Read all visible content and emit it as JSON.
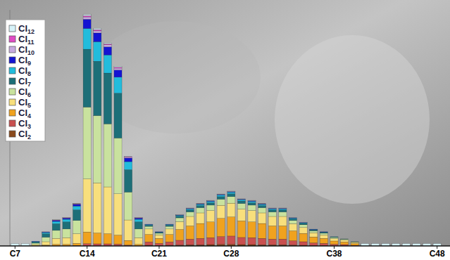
{
  "chart_data": {
    "type": "bar",
    "stacked": true,
    "legend": "top-left",
    "tick_labels": "x",
    "grid": false,
    "ylim": [
      0,
      100
    ],
    "categories": [
      "C7",
      null,
      null,
      null,
      null,
      null,
      null,
      "C14",
      null,
      null,
      null,
      null,
      null,
      null,
      "C21",
      null,
      null,
      null,
      null,
      null,
      null,
      "C28",
      null,
      null,
      null,
      null,
      null,
      null,
      null,
      null,
      null,
      "C38",
      null,
      null,
      null,
      null,
      null,
      null,
      null,
      null,
      null,
      "C48"
    ],
    "series": [
      {
        "name": "Cl2",
        "color": "#8b4a1c",
        "values": [
          0,
          0,
          0,
          0,
          0,
          0,
          0,
          0,
          0,
          0,
          0,
          0,
          0,
          0.3,
          0.2,
          0.3,
          0.4,
          0.5,
          0.5,
          0.6,
          0.7,
          0.7,
          0.6,
          0.6,
          0.5,
          0.5,
          0.5,
          0.4,
          0.3,
          0.2,
          0.2,
          0.1,
          0.1,
          0,
          0,
          0,
          0,
          0,
          0,
          0,
          0,
          0
        ]
      },
      {
        "name": "Cl3",
        "color": "#c9504f",
        "values": [
          0,
          0,
          0,
          0.1,
          0.1,
          0.1,
          0.2,
          1.0,
          0.9,
          0.9,
          0.8,
          0.4,
          0.1,
          1.4,
          0.9,
          1.4,
          2.0,
          2.4,
          2.7,
          2.9,
          3.3,
          3.5,
          3.0,
          2.9,
          2.7,
          2.4,
          2.4,
          1.8,
          1.5,
          1.1,
          0.9,
          0.6,
          0.5,
          0.3,
          0,
          0,
          0,
          0,
          0,
          0,
          0,
          0
        ]
      },
      {
        "name": "Cl4",
        "color": "#f0a21e",
        "values": [
          0,
          0,
          0.1,
          0.3,
          0.6,
          0.6,
          0.9,
          4.9,
          4.6,
          4.3,
          3.8,
          1.9,
          0.6,
          3.2,
          2.1,
          3.2,
          4.6,
          5.6,
          6.3,
          6.7,
          7.7,
          8.1,
          7.0,
          6.7,
          6.3,
          5.6,
          5.6,
          4.2,
          3.5,
          2.5,
          2.1,
          1.4,
          1.1,
          0.7,
          0,
          0,
          0,
          0,
          0,
          0,
          0,
          0
        ]
      },
      {
        "name": "Cl5",
        "color": "#f8df7c",
        "values": [
          0,
          0,
          0.5,
          1.4,
          2.5,
          2.8,
          4.1,
          22.5,
          21.2,
          19.8,
          17.5,
          8.7,
          2.8,
          2.3,
          1.5,
          2.3,
          3.3,
          4.0,
          4.5,
          4.8,
          5.5,
          5.8,
          5.0,
          4.8,
          4.5,
          4.0,
          4.0,
          3.0,
          2.5,
          1.8,
          1.5,
          1.0,
          0.8,
          0.5,
          0,
          0,
          0,
          0,
          0,
          0,
          0,
          0
        ]
      },
      {
        "name": "Cl6",
        "color": "#c9e29e",
        "values": [
          0,
          0,
          0.6,
          1.9,
          3.4,
          3.7,
          5.6,
          30.4,
          28.5,
          26.7,
          23.6,
          11.8,
          3.7,
          1.1,
          0.7,
          1.1,
          1.6,
          1.9,
          2.2,
          2.3,
          2.6,
          2.8,
          2.4,
          2.3,
          2.2,
          1.9,
          1.9,
          1.4,
          1.2,
          0.8,
          0.7,
          0.5,
          0.4,
          0.2,
          0,
          0,
          0,
          0,
          0,
          0,
          0,
          0
        ]
      },
      {
        "name": "Cl7",
        "color": "#1d6f78",
        "values": [
          0,
          0,
          0.5,
          1.5,
          2.8,
          3.0,
          4.5,
          24.5,
          23.0,
          21.5,
          19.0,
          9.5,
          3.0,
          0.5,
          0.3,
          0.5,
          0.7,
          0.8,
          0.9,
          1.0,
          1.1,
          1.2,
          1.0,
          1.0,
          0.9,
          0.8,
          0.8,
          0.6,
          0.5,
          0.4,
          0.3,
          0.2,
          0.1,
          0.1,
          0,
          0,
          0,
          0,
          0,
          0,
          0,
          0
        ]
      },
      {
        "name": "Cl8",
        "color": "#22bcdc",
        "values": [
          0,
          0,
          0.2,
          0.5,
          1.0,
          1.1,
          1.6,
          8.8,
          8.3,
          7.7,
          6.8,
          3.4,
          1.1,
          0.3,
          0.2,
          0.3,
          0.4,
          0.5,
          0.5,
          0.6,
          0.7,
          0.7,
          0.6,
          0.6,
          0.5,
          0.5,
          0.5,
          0.4,
          0.3,
          0.2,
          0.2,
          0.1,
          0,
          0,
          0,
          0,
          0,
          0,
          0,
          0,
          0,
          0
        ]
      },
      {
        "name": "Cl9",
        "color": "#1414d2",
        "values": [
          0,
          0,
          0.1,
          0.2,
          0.4,
          0.5,
          0.7,
          3.9,
          3.7,
          3.4,
          3.0,
          1.5,
          0.5,
          0.1,
          0.1,
          0.1,
          0.1,
          0.2,
          0.2,
          0.2,
          0.2,
          0.2,
          0.2,
          0.2,
          0.2,
          0.2,
          0.2,
          0.1,
          0.1,
          0.1,
          0.1,
          0,
          0,
          0,
          0,
          0,
          0,
          0,
          0,
          0,
          0,
          0
        ]
      },
      {
        "name": "Cl10",
        "color": "#c7a9df",
        "values": [
          0,
          0,
          0,
          0.1,
          0.1,
          0.1,
          0.2,
          1.0,
          0.9,
          0.9,
          0.8,
          0.4,
          0.1,
          0,
          0,
          0,
          0.1,
          0.1,
          0.1,
          0.1,
          0.1,
          0.1,
          0.1,
          0.1,
          0.1,
          0.1,
          0.1,
          0.1,
          0.1,
          0,
          0,
          0,
          0,
          0,
          0,
          0,
          0,
          0,
          0,
          0,
          0,
          0
        ]
      },
      {
        "name": "Cl11",
        "color": "#e04cc4",
        "values": [
          0,
          0,
          0,
          0,
          0.1,
          0.1,
          0.1,
          0.5,
          0.5,
          0.4,
          0.4,
          0.2,
          0.1,
          0,
          0,
          0,
          0,
          0,
          0,
          0,
          0,
          0,
          0,
          0,
          0,
          0,
          0,
          0,
          0,
          0,
          0,
          0,
          0,
          0,
          0,
          0,
          0,
          0,
          0,
          0,
          0,
          0
        ]
      },
      {
        "name": "Cl12",
        "color": "#d6f2f8",
        "values": [
          1,
          1,
          0,
          0,
          0.1,
          0.1,
          0.1,
          0.5,
          0.5,
          0.4,
          0.4,
          0.2,
          0.1,
          0,
          0,
          0,
          0.1,
          0.1,
          0.1,
          0.1,
          0.1,
          0.1,
          0.1,
          0.1,
          0.1,
          0.1,
          0.1,
          0.1,
          0,
          0,
          0,
          0,
          0,
          0,
          1,
          1,
          1,
          1,
          1,
          1,
          1,
          1
        ]
      }
    ]
  }
}
